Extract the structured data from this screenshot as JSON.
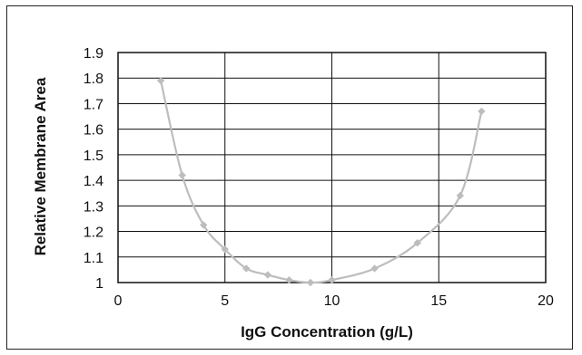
{
  "chart_data": {
    "type": "line",
    "title": "",
    "xlabel": "IgG Concentration (g/L)",
    "ylabel": "Relative Membrane Area",
    "xlim": [
      0,
      20
    ],
    "ylim": [
      1,
      1.9
    ],
    "xticks": [
      0,
      5,
      10,
      15,
      20
    ],
    "yticks": [
      1,
      1.1,
      1.2,
      1.3,
      1.4,
      1.5,
      1.6,
      1.7,
      1.8,
      1.9
    ],
    "xtick_labels": [
      "0",
      "5",
      "10",
      "15",
      "20"
    ],
    "ytick_labels": [
      "1",
      "1.1",
      "1.2",
      "1.3",
      "1.4",
      "1.5",
      "1.6",
      "1.7",
      "1.8",
      "1.9"
    ],
    "grid": true,
    "legend": "none",
    "series": [
      {
        "color": "#bdbdbd",
        "marker": "diamond",
        "points": [
          {
            "x": 2,
            "y": 1.79
          },
          {
            "x": 3,
            "y": 1.42
          },
          {
            "x": 4,
            "y": 1.225
          },
          {
            "x": 5,
            "y": 1.13
          },
          {
            "x": 6,
            "y": 1.055
          },
          {
            "x": 7,
            "y": 1.03
          },
          {
            "x": 8,
            "y": 1.01
          },
          {
            "x": 9,
            "y": 1.0
          },
          {
            "x": 10,
            "y": 1.01
          },
          {
            "x": 12,
            "y": 1.055
          },
          {
            "x": 14,
            "y": 1.155
          },
          {
            "x": 16,
            "y": 1.34
          },
          {
            "x": 17,
            "y": 1.67
          }
        ]
      }
    ]
  }
}
